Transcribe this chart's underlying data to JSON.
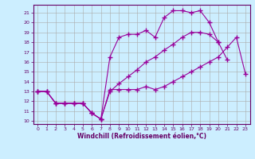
{
  "xlabel": "Windchill (Refroidissement éolien,°C)",
  "background_color": "#cceeff",
  "line_color": "#990099",
  "grid_color": "#aaaaaa",
  "xlim": [
    -0.5,
    23.5
  ],
  "ylim": [
    9.7,
    21.8
  ],
  "xticks": [
    0,
    1,
    2,
    3,
    4,
    5,
    6,
    7,
    8,
    9,
    10,
    11,
    12,
    13,
    14,
    15,
    16,
    17,
    18,
    19,
    20,
    21,
    22,
    23
  ],
  "yticks": [
    10,
    11,
    12,
    13,
    14,
    15,
    16,
    17,
    18,
    19,
    20,
    21
  ],
  "line1_x": [
    0,
    1,
    2,
    3,
    4,
    5,
    6,
    7,
    8,
    9,
    10,
    11,
    12,
    13,
    14,
    15,
    16,
    17,
    18,
    19,
    20,
    21,
    22,
    23
  ],
  "line1_y": [
    13.0,
    13.0,
    11.8,
    11.8,
    11.8,
    11.8,
    10.8,
    10.2,
    13.2,
    13.2,
    13.2,
    13.2,
    13.5,
    13.2,
    13.5,
    14.0,
    14.5,
    15.0,
    15.5,
    16.0,
    16.5,
    17.5,
    18.5,
    14.8
  ],
  "line2_x": [
    0,
    1,
    2,
    3,
    4,
    5,
    6,
    7,
    8,
    9,
    10,
    11,
    12,
    13,
    14,
    15,
    16,
    17,
    18,
    19,
    20,
    21
  ],
  "line2_y": [
    13.0,
    13.0,
    11.8,
    11.8,
    11.8,
    11.8,
    10.8,
    10.2,
    16.5,
    18.5,
    18.8,
    18.8,
    19.2,
    18.5,
    20.5,
    21.2,
    21.2,
    21.0,
    21.2,
    20.0,
    18.0,
    16.2
  ],
  "line3_x": [
    0,
    1,
    2,
    3,
    4,
    5,
    6,
    7,
    8,
    9,
    10,
    11,
    12,
    13,
    14,
    15,
    16,
    17,
    18,
    19,
    20
  ],
  "line3_y": [
    13.0,
    13.0,
    11.8,
    11.8,
    11.8,
    11.8,
    10.8,
    10.2,
    13.0,
    13.8,
    14.5,
    15.2,
    16.0,
    16.5,
    17.2,
    17.8,
    18.5,
    19.0,
    19.0,
    18.8,
    18.0
  ]
}
